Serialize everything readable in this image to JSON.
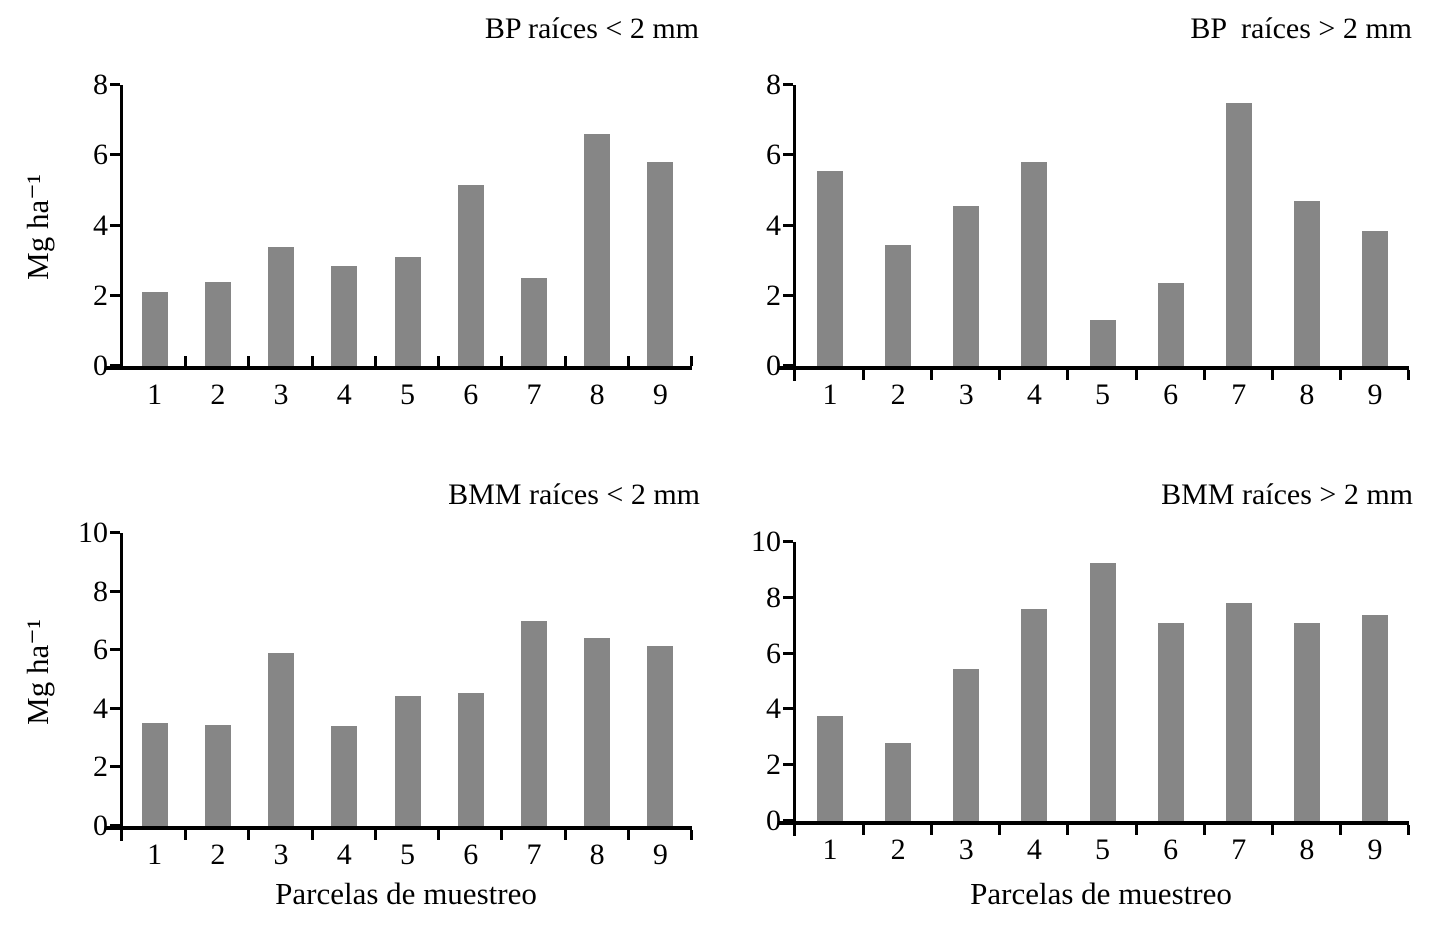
{
  "figure_text": {
    "xlabel": "Parcelas de muestreo",
    "ylabel": "Mg ha⁻¹"
  },
  "colors": {
    "bar": "#868686",
    "axis": "#000000",
    "text": "#000000",
    "background": "#ffffff"
  },
  "chart_data": [
    {
      "type": "bar",
      "title": "BP raíces < 2 mm",
      "categories": [
        "1",
        "2",
        "3",
        "4",
        "5",
        "6",
        "7",
        "8",
        "9"
      ],
      "values": [
        2.1,
        2.4,
        3.4,
        2.85,
        3.1,
        5.15,
        2.5,
        6.6,
        5.8
      ],
      "xlabel": "",
      "ylabel": "Mg ha⁻¹",
      "ylim": [
        0,
        8
      ],
      "yticks": [
        0,
        2,
        4,
        6,
        8
      ],
      "grid": false,
      "legend": "none",
      "bar_color": "#868686",
      "xtick_side": "inside"
    },
    {
      "type": "bar",
      "title": "BP  raíces > 2 mm",
      "categories": [
        "1",
        "2",
        "3",
        "4",
        "5",
        "6",
        "7",
        "8",
        "9"
      ],
      "values": [
        5.55,
        3.45,
        4.55,
        5.8,
        1.3,
        2.35,
        7.5,
        4.7,
        3.85
      ],
      "xlabel": "",
      "ylabel": "",
      "ylim": [
        0,
        8
      ],
      "yticks": [
        0,
        2,
        4,
        6,
        8
      ],
      "grid": false,
      "legend": "none",
      "bar_color": "#868686",
      "xtick_side": "outside"
    },
    {
      "type": "bar",
      "title": "BMM raíces < 2 mm",
      "categories": [
        "1",
        "2",
        "3",
        "4",
        "5",
        "6",
        "7",
        "8",
        "9"
      ],
      "values": [
        3.5,
        3.45,
        5.9,
        3.4,
        4.45,
        4.55,
        7.0,
        6.4,
        6.15
      ],
      "xlabel": "Parcelas de muestreo",
      "ylabel": "Mg ha⁻¹",
      "ylim": [
        0,
        10
      ],
      "yticks": [
        0,
        2,
        4,
        6,
        8,
        10
      ],
      "grid": false,
      "legend": "none",
      "bar_color": "#868686",
      "xtick_side": "outside"
    },
    {
      "type": "bar",
      "title": "BMM raíces > 2 mm",
      "categories": [
        "1",
        "2",
        "3",
        "4",
        "5",
        "6",
        "7",
        "8",
        "9"
      ],
      "values": [
        3.75,
        2.8,
        5.45,
        7.6,
        9.25,
        7.1,
        7.8,
        7.1,
        7.4
      ],
      "xlabel": "Parcelas de muestreo",
      "ylabel": "",
      "ylim": [
        0,
        10
      ],
      "yticks": [
        0,
        2,
        4,
        6,
        8,
        10
      ],
      "grid": false,
      "legend": "none",
      "bar_color": "#868686",
      "xtick_side": "outside"
    }
  ]
}
